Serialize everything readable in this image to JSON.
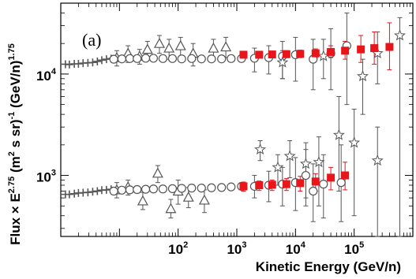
{
  "chart_data": {
    "type": "scatter",
    "panel_label": "(a)",
    "xlabel": "Kinetic Energy (GeV/n)",
    "ylabel": {
      "lead": "Flux × E",
      "exp1": "2.75",
      "mid": " (m",
      "exp2": "2",
      "mid2": " s sr)",
      "exp3": "-1",
      "tail": " (GeV/n)",
      "exp4": "1.75"
    },
    "x_scale": "log",
    "y_scale": "log",
    "xlim": [
      1,
      1000000
    ],
    "ylim": [
      250,
      50000
    ],
    "x_ticks": [
      {
        "value": 100,
        "base": "10",
        "exp": "2"
      },
      {
        "value": 1000,
        "base": "10",
        "exp": "3"
      },
      {
        "value": 10000,
        "base": "10",
        "exp": "4"
      },
      {
        "value": 100000,
        "base": "10",
        "exp": "5"
      }
    ],
    "y_ticks": [
      {
        "value": 1000,
        "base": "10",
        "exp": "3"
      },
      {
        "value": 10000,
        "base": "10",
        "exp": "4"
      }
    ],
    "legend": "none",
    "grid": false,
    "colors": {
      "highlight": "#e8151b",
      "series": "#555555",
      "axis": "#000000"
    },
    "series": [
      {
        "marker": "cross",
        "points": [
          {
            "x": 1.2,
            "y": 12500
          },
          {
            "x": 1.4,
            "y": 12400
          },
          {
            "x": 1.7,
            "y": 12600
          },
          {
            "x": 2.0,
            "y": 12600
          },
          {
            "x": 2.4,
            "y": 12800
          },
          {
            "x": 2.9,
            "y": 12900
          },
          {
            "x": 3.5,
            "y": 13000
          },
          {
            "x": 4.2,
            "y": 13300
          },
          {
            "x": 5.0,
            "y": 13700
          },
          {
            "x": 6.0,
            "y": 14000
          },
          {
            "x": 7.2,
            "y": 14200
          },
          {
            "x": 1.2,
            "y": 650
          },
          {
            "x": 1.4,
            "y": 650
          },
          {
            "x": 1.7,
            "y": 660
          },
          {
            "x": 2.0,
            "y": 670
          },
          {
            "x": 2.4,
            "y": 675
          },
          {
            "x": 2.9,
            "y": 680
          },
          {
            "x": 3.5,
            "y": 690
          },
          {
            "x": 4.2,
            "y": 700
          },
          {
            "x": 5.0,
            "y": 715
          },
          {
            "x": 6.0,
            "y": 720
          },
          {
            "x": 7.2,
            "y": 730
          }
        ]
      },
      {
        "marker": "triangle",
        "points": [
          {
            "x": 9,
            "y": 14500,
            "lo": 12000,
            "hi": 17000
          },
          {
            "x": 14,
            "y": 16000,
            "lo": 13000,
            "hi": 19000
          },
          {
            "x": 22,
            "y": 15000,
            "lo": 12500,
            "hi": 17500
          },
          {
            "x": 30,
            "y": 17500,
            "lo": 14000,
            "hi": 21000
          },
          {
            "x": 48,
            "y": 20000,
            "lo": 16000,
            "hi": 24000
          },
          {
            "x": 70,
            "y": 18000,
            "lo": 14000,
            "hi": 22000
          },
          {
            "x": 110,
            "y": 19000,
            "lo": 14500,
            "hi": 23000
          },
          {
            "x": 180,
            "y": 16000,
            "lo": 12000,
            "hi": 20000
          },
          {
            "x": 400,
            "y": 18000,
            "lo": 14000,
            "hi": 22000
          },
          {
            "x": 650,
            "y": 18500,
            "lo": 14500,
            "hi": 23000
          },
          {
            "x": 9,
            "y": 720,
            "lo": 600,
            "hi": 850
          },
          {
            "x": 14,
            "y": 770,
            "lo": 640,
            "hi": 900
          },
          {
            "x": 25,
            "y": 560,
            "lo": 460,
            "hi": 680
          },
          {
            "x": 45,
            "y": 1050,
            "lo": 850,
            "hi": 1250
          },
          {
            "x": 75,
            "y": 470,
            "lo": 380,
            "hi": 580
          },
          {
            "x": 100,
            "y": 700,
            "lo": 520,
            "hi": 900
          },
          {
            "x": 150,
            "y": 610,
            "lo": 480,
            "hi": 760
          },
          {
            "x": 280,
            "y": 570,
            "lo": 430,
            "hi": 720
          }
        ]
      },
      {
        "marker": "circle",
        "points": [
          {
            "x": 8,
            "y": 14000
          },
          {
            "x": 11,
            "y": 14100
          },
          {
            "x": 15,
            "y": 14200
          },
          {
            "x": 20,
            "y": 14200
          },
          {
            "x": 28,
            "y": 14300
          },
          {
            "x": 38,
            "y": 14300
          },
          {
            "x": 55,
            "y": 14200
          },
          {
            "x": 80,
            "y": 14200
          },
          {
            "x": 115,
            "y": 14100
          },
          {
            "x": 170,
            "y": 14200
          },
          {
            "x": 250,
            "y": 14100
          },
          {
            "x": 370,
            "y": 14100
          },
          {
            "x": 550,
            "y": 14100
          },
          {
            "x": 800,
            "y": 14200
          },
          {
            "x": 1200,
            "y": 14200
          },
          {
            "x": 2000,
            "y": 14300,
            "lo": 10500,
            "hi": 18000
          },
          {
            "x": 3500,
            "y": 14500,
            "lo": 10000,
            "hi": 19000
          },
          {
            "x": 6000,
            "y": 15000,
            "lo": 9000,
            "hi": 21000
          },
          {
            "x": 10000,
            "y": 15500,
            "lo": 8500,
            "hi": 23000
          },
          {
            "x": 20000,
            "y": 14000,
            "lo": 7000,
            "hi": 22000
          },
          {
            "x": 40000,
            "y": 16000,
            "lo": 7000,
            "hi": 28000
          },
          {
            "x": 75000,
            "y": 19000,
            "lo": 5000,
            "hi": 40000
          },
          {
            "x": 8,
            "y": 700
          },
          {
            "x": 11,
            "y": 715
          },
          {
            "x": 15,
            "y": 720
          },
          {
            "x": 20,
            "y": 725
          },
          {
            "x": 28,
            "y": 730
          },
          {
            "x": 38,
            "y": 735
          },
          {
            "x": 55,
            "y": 735
          },
          {
            "x": 80,
            "y": 740
          },
          {
            "x": 115,
            "y": 745
          },
          {
            "x": 170,
            "y": 750
          },
          {
            "x": 250,
            "y": 750
          },
          {
            "x": 370,
            "y": 755
          },
          {
            "x": 550,
            "y": 760
          },
          {
            "x": 800,
            "y": 770
          },
          {
            "x": 1200,
            "y": 780
          },
          {
            "x": 2000,
            "y": 780,
            "lo": 600,
            "hi": 1000
          },
          {
            "x": 3500,
            "y": 800,
            "lo": 550,
            "hi": 1100
          },
          {
            "x": 6000,
            "y": 820,
            "lo": 500,
            "hi": 1200
          },
          {
            "x": 10000,
            "y": 850,
            "lo": 450,
            "hi": 1500
          },
          {
            "x": 15000,
            "y": 1000,
            "lo": 500,
            "hi": 1800
          },
          {
            "x": 20000,
            "y": 700,
            "lo": 350,
            "hi": 1300
          },
          {
            "x": 30000,
            "y": 820,
            "lo": 380,
            "hi": 1600
          },
          {
            "x": 60000,
            "y": 850,
            "lo": 350,
            "hi": 2000
          }
        ]
      },
      {
        "marker": "star",
        "points": [
          {
            "x": 6000,
            "y": 13000,
            "lo": 9000,
            "hi": 17000
          },
          {
            "x": 30000,
            "y": 15000,
            "lo": 9000,
            "hi": 22000
          },
          {
            "x": 55000,
            "y": 2500,
            "lo": 700,
            "hi": 6000
          },
          {
            "x": 140000,
            "y": 9500,
            "lo": 4000,
            "hi": 14000
          },
          {
            "x": 250000,
            "y": 16000,
            "lo": 8000,
            "hi": 26000
          },
          {
            "x": 600000,
            "y": 24000,
            "lo": 250,
            "hi": 36000
          },
          {
            "x": 2500,
            "y": 1800,
            "lo": 1400,
            "hi": 2200
          },
          {
            "x": 5000,
            "y": 1200,
            "lo": 800,
            "hi": 1600
          },
          {
            "x": 8000,
            "y": 1550,
            "lo": 950,
            "hi": 2200
          },
          {
            "x": 15000,
            "y": 1300,
            "lo": 600,
            "hi": 2100
          },
          {
            "x": 25000,
            "y": 1350,
            "lo": 500,
            "hi": 2400
          },
          {
            "x": 100000,
            "y": 2100,
            "lo": 400,
            "hi": 4500
          },
          {
            "x": 250000,
            "y": 1400,
            "lo": 250,
            "hi": 3000
          }
        ]
      },
      {
        "marker": "square",
        "highlight": true,
        "points": [
          {
            "x": 1300,
            "y": 15500,
            "lo": 14500,
            "hi": 16500
          },
          {
            "x": 2400,
            "y": 15500,
            "lo": 14500,
            "hi": 16500
          },
          {
            "x": 4000,
            "y": 15600,
            "lo": 14500,
            "hi": 16800
          },
          {
            "x": 7000,
            "y": 15700,
            "lo": 14500,
            "hi": 17000
          },
          {
            "x": 12000,
            "y": 15800,
            "lo": 14500,
            "hi": 17200
          },
          {
            "x": 22000,
            "y": 16000,
            "lo": 14500,
            "hi": 17700
          },
          {
            "x": 40000,
            "y": 16500,
            "lo": 14500,
            "hi": 19000
          },
          {
            "x": 70000,
            "y": 17000,
            "lo": 14000,
            "hi": 21000
          },
          {
            "x": 130000,
            "y": 17500,
            "lo": 13000,
            "hi": 24000
          },
          {
            "x": 220000,
            "y": 18000,
            "lo": 12500,
            "hi": 26000
          },
          {
            "x": 400000,
            "y": 18500,
            "lo": 11000,
            "hi": 32000
          },
          {
            "x": 1300,
            "y": 780,
            "lo": 700,
            "hi": 860
          },
          {
            "x": 2400,
            "y": 800,
            "lo": 710,
            "hi": 880
          },
          {
            "x": 4000,
            "y": 810,
            "lo": 710,
            "hi": 900
          },
          {
            "x": 7000,
            "y": 820,
            "lo": 710,
            "hi": 930
          },
          {
            "x": 12000,
            "y": 840,
            "lo": 700,
            "hi": 980
          },
          {
            "x": 22000,
            "y": 870,
            "lo": 700,
            "hi": 1040
          },
          {
            "x": 40000,
            "y": 950,
            "lo": 720,
            "hi": 1200
          },
          {
            "x": 70000,
            "y": 1000,
            "lo": 720,
            "hi": 1350
          }
        ]
      }
    ]
  }
}
